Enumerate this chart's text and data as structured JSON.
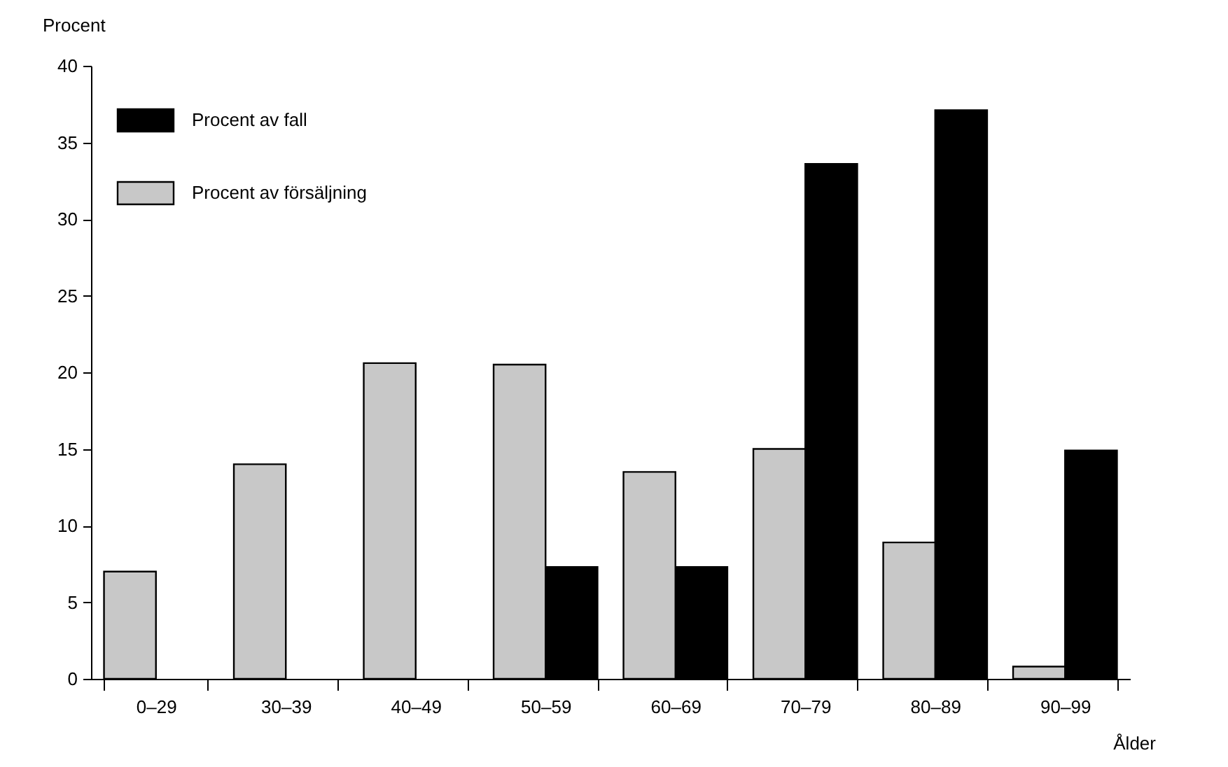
{
  "chart_data": {
    "type": "bar",
    "xlabel": "Ålder",
    "ylabel": "Procent",
    "categories": [
      "0–29",
      "30–39",
      "40–49",
      "50–59",
      "60–69",
      "70–79",
      "80–89",
      "90–99"
    ],
    "series": [
      {
        "name": "Procent av fall",
        "color": "#000000",
        "values": [
          null,
          null,
          null,
          7.3,
          7.3,
          33.6,
          37.1,
          14.9
        ]
      },
      {
        "name": "Procent av försäljning",
        "color": "#c8c8c8",
        "values": [
          7,
          14,
          20.6,
          20.5,
          13.5,
          15,
          8.9,
          0.8
        ]
      }
    ],
    "ylim": [
      0,
      40
    ],
    "yticks": [
      0,
      5,
      10,
      15,
      20,
      25,
      30,
      35,
      40
    ],
    "grid": false,
    "legend": "top left"
  }
}
